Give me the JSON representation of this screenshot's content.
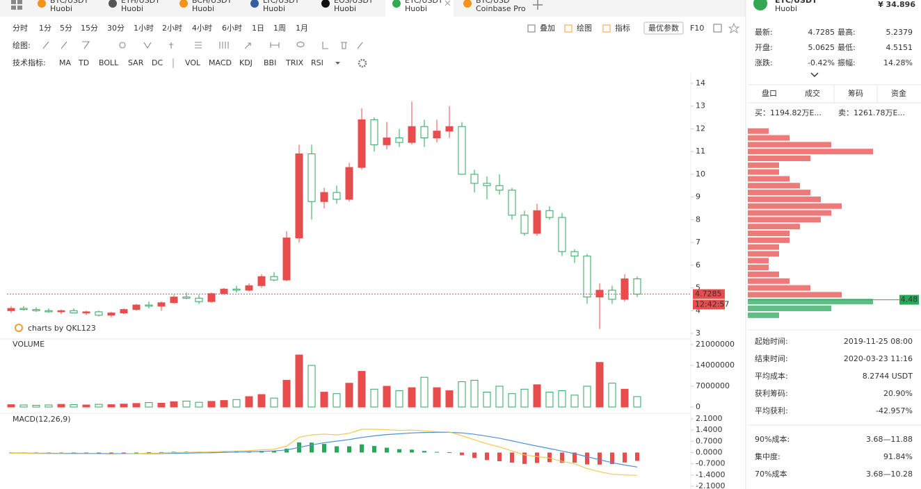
{
  "tabs": [
    {
      "pair": "BTC/USDT",
      "exchange": "Huobi",
      "icon": "#f7931a"
    },
    {
      "pair": "ETH/USDT",
      "exchange": "Huobi",
      "icon": "#555555"
    },
    {
      "pair": "BCH/USDT",
      "exchange": "Huobi",
      "icon": "#f7931a"
    },
    {
      "pair": "LTC/USDT",
      "exchange": "Huobi",
      "icon": "#345d9d"
    },
    {
      "pair": "EOS/USDT",
      "exchange": "Huobi",
      "icon": "#111111"
    },
    {
      "pair": "ETC/USDT",
      "exchange": "Huobi",
      "icon": "#33a852"
    },
    {
      "pair": "BTC/USD",
      "exchange": "Coinbase Pro",
      "icon": "#f7931a"
    }
  ],
  "tabs_active": 5,
  "periods": [
    "分时",
    "1分",
    "5分",
    "15分",
    "30分",
    "1小时",
    "2小时",
    "4小时",
    "6小时",
    "1日",
    "1周",
    "1月"
  ],
  "periods_active": 9,
  "tools": [
    "叠加",
    "绘图",
    "指标"
  ],
  "best_params": "最优参数",
  "f10": "F10",
  "draw_label": "绘图:",
  "indicator_label": "技术指标:",
  "indicators_main": [
    "MA",
    "TD",
    "BOLL",
    "SAR",
    "DC"
  ],
  "indicators_sub": [
    {
      "name": "VOL",
      "active": true
    },
    {
      "name": "MACD",
      "active": true
    },
    {
      "name": "KDJ",
      "active": false
    },
    {
      "name": "BBI",
      "active": false
    },
    {
      "name": "TRIX",
      "active": false
    },
    {
      "name": "RSI",
      "active": false
    }
  ],
  "header": {
    "pair": "ETC/USDT",
    "exchange": "Huobi",
    "price": "¥ 34.896"
  },
  "stats": [
    {
      "label": "最新:",
      "value": "4.7285",
      "color": "#333333"
    },
    {
      "label": "最高:",
      "value": "5.2379",
      "color": "#2aa85a"
    },
    {
      "label": "开盘:",
      "value": "5.0625",
      "color": "#333333"
    },
    {
      "label": "最低:",
      "value": "4.5151",
      "color": "#e84c4c"
    },
    {
      "label": "涨跌:",
      "value": "-0.42%",
      "color": "#e84c4c"
    },
    {
      "label": "振幅:",
      "value": "14.28%",
      "color": "#e84c4c"
    }
  ],
  "panel_tabs": [
    "盘口",
    "成交",
    "筹码",
    "资金"
  ],
  "panel_tabs_active": 2,
  "buy": "买：1194.82万E...",
  "sell": "卖：1261.78万E...",
  "chips": {
    "type": "bar",
    "price": 4.48,
    "prices": [
      11.9,
      11.6,
      11.3,
      11.0,
      10.7,
      10.4,
      10.1,
      9.8,
      9.5,
      9.2,
      8.9,
      8.6,
      8.3,
      8.0,
      7.7,
      7.4,
      7.1,
      6.8,
      6.5,
      6.2,
      5.9,
      5.6,
      5.3,
      5.0,
      4.7,
      4.4,
      4.1,
      3.8
    ],
    "values": [
      2,
      4,
      8,
      12,
      6,
      3,
      3,
      4,
      5,
      6,
      7,
      9,
      8,
      7,
      5,
      4,
      4,
      3,
      3,
      2,
      2,
      3,
      4,
      6,
      9,
      12,
      8,
      3
    ],
    "xlim": [
      0,
      12
    ],
    "up_color": "#e84c4c",
    "down_color": "#2aa85a"
  },
  "summary": [
    {
      "label": "起始时间:",
      "value": "2019-11-25 08:00",
      "color": "#333333"
    },
    {
      "label": "结束时间:",
      "value": "2020-03-23 11:16",
      "color": "#333333"
    },
    {
      "label": "平均成本:",
      "value": "8.2744 USDT",
      "color": "#e84c4c"
    },
    {
      "label": "获利筹码:",
      "value": "20.90%",
      "color": "#333333"
    },
    {
      "label": "平均获利:",
      "value": "-42.957%",
      "color": "#e84c4c"
    },
    {
      "label": "90%成本:",
      "value": "3.68—11.88",
      "color": "#333333"
    },
    {
      "label": "集中度:",
      "value": "91.84%",
      "color": "#333333"
    },
    {
      "label": "70%成本",
      "value": "3.68—10.28",
      "color": "#333333"
    }
  ],
  "chart_data": [
    {
      "type": "candlestick",
      "open": [
        4.0,
        4.1,
        4.05,
        4.0,
        3.95,
        4.0,
        3.9,
        3.95,
        3.8,
        3.9,
        4.05,
        4.25,
        4.2,
        4.35,
        4.6,
        4.55,
        4.4,
        4.75,
        4.95,
        4.9,
        5.1,
        5.5,
        5.35,
        7.2,
        10.9,
        8.8,
        9.2,
        8.9,
        10.3,
        12.4,
        11.3,
        11.6,
        11.4,
        12.1,
        11.6,
        11.9,
        12.1,
        10.0,
        9.6,
        9.5,
        9.3,
        8.2,
        7.4,
        8.4,
        8.1,
        6.6,
        6.4,
        4.6,
        4.9,
        4.5,
        5.4
      ],
      "high": [
        4.2,
        4.2,
        4.15,
        4.1,
        4.05,
        4.1,
        4.0,
        4.0,
        3.95,
        4.1,
        4.3,
        4.4,
        4.4,
        4.7,
        4.8,
        4.7,
        4.8,
        5.0,
        5.1,
        5.2,
        5.6,
        5.7,
        7.5,
        11.3,
        11.3,
        9.4,
        9.5,
        10.5,
        12.9,
        12.5,
        12.3,
        12.0,
        13.2,
        12.4,
        12.4,
        13.0,
        12.3,
        10.2,
        9.9,
        10.0,
        9.4,
        8.4,
        8.7,
        8.6,
        8.3,
        6.7,
        6.5,
        5.2,
        5.1,
        5.6,
        5.5
      ],
      "low": [
        3.9,
        4.0,
        3.95,
        3.9,
        3.85,
        3.9,
        3.8,
        3.75,
        3.7,
        3.85,
        4.0,
        4.1,
        4.0,
        4.3,
        4.5,
        4.3,
        4.35,
        4.7,
        4.8,
        4.85,
        5.0,
        5.3,
        5.3,
        7.0,
        8.0,
        8.5,
        8.7,
        8.8,
        10.2,
        11.0,
        11.1,
        11.2,
        11.3,
        11.2,
        11.4,
        11.6,
        10.0,
        9.2,
        8.9,
        9.1,
        8.0,
        7.3,
        7.3,
        8.0,
        6.4,
        6.1,
        4.3,
        3.2,
        4.3,
        4.4,
        4.6
      ],
      "close": [
        4.1,
        4.05,
        4.0,
        3.95,
        4.0,
        3.9,
        3.95,
        3.8,
        3.9,
        4.05,
        4.25,
        4.2,
        4.35,
        4.6,
        4.55,
        4.4,
        4.75,
        4.95,
        4.9,
        5.1,
        5.5,
        5.35,
        7.2,
        10.9,
        8.8,
        9.2,
        8.9,
        10.3,
        12.4,
        11.3,
        11.6,
        11.4,
        12.1,
        11.6,
        11.9,
        12.1,
        10.0,
        9.6,
        9.5,
        9.3,
        8.2,
        7.4,
        8.4,
        8.1,
        6.6,
        6.4,
        4.6,
        4.9,
        4.5,
        5.4,
        4.73
      ],
      "ylim": [
        3,
        14
      ],
      "yticks": [
        3,
        4,
        5,
        6,
        7,
        8,
        9,
        10,
        11,
        12,
        13,
        14
      ],
      "last_price": 4.7285,
      "countdown": "12:42:57",
      "watermark": "charts by QKL123",
      "up_color": "#e84c4c",
      "down_color": "#2aa85a"
    },
    {
      "type": "bar",
      "title": "VOLUME",
      "values": [
        800000,
        700000,
        600000,
        700000,
        900000,
        800000,
        700000,
        900000,
        800000,
        1000000,
        1200000,
        1500000,
        1300000,
        1800000,
        2000000,
        1600000,
        1900000,
        2200000,
        2500000,
        3500000,
        4200000,
        3000000,
        9000000,
        17500000,
        14000000,
        5000000,
        4500000,
        8000000,
        12000000,
        6000000,
        7000000,
        5500000,
        6500000,
        10000000,
        6500000,
        5500000,
        8500000,
        9000000,
        5000000,
        7000000,
        4500000,
        6000000,
        7500000,
        5000000,
        5500000,
        4000000,
        7000000,
        15000000,
        8000000,
        6000000,
        3500000
      ],
      "ylim": [
        0,
        21000000
      ],
      "yticks": [
        0,
        7000000,
        14000000,
        21000000
      ]
    },
    {
      "type": "macd",
      "title": "MACD(12,26,9)",
      "dif": [
        -0.05,
        -0.05,
        -0.06,
        -0.07,
        -0.07,
        -0.08,
        -0.08,
        -0.09,
        -0.1,
        -0.09,
        -0.07,
        -0.05,
        -0.03,
        0.0,
        0.02,
        0.03,
        0.04,
        0.07,
        0.1,
        0.12,
        0.17,
        0.2,
        0.4,
        0.95,
        1.1,
        1.15,
        1.1,
        1.2,
        1.45,
        1.45,
        1.42,
        1.38,
        1.4,
        1.35,
        1.3,
        1.28,
        1.05,
        0.8,
        0.55,
        0.35,
        0.1,
        -0.15,
        -0.25,
        -0.35,
        -0.55,
        -0.7,
        -1.0,
        -1.2,
        -1.35,
        -1.4,
        -1.42
      ],
      "dea": [
        -0.03,
        -0.03,
        -0.04,
        -0.04,
        -0.05,
        -0.05,
        -0.06,
        -0.06,
        -0.07,
        -0.07,
        -0.07,
        -0.07,
        -0.06,
        -0.05,
        -0.04,
        -0.02,
        -0.01,
        0.01,
        0.03,
        0.05,
        0.07,
        0.1,
        0.16,
        0.32,
        0.48,
        0.61,
        0.71,
        0.81,
        0.94,
        1.04,
        1.12,
        1.17,
        1.22,
        1.25,
        1.26,
        1.26,
        1.22,
        1.14,
        1.02,
        0.89,
        0.73,
        0.56,
        0.4,
        0.25,
        0.09,
        -0.07,
        -0.26,
        -0.45,
        -0.63,
        -0.78,
        -0.9
      ],
      "hist": [
        -0.02,
        -0.02,
        -0.02,
        -0.03,
        -0.02,
        -0.03,
        -0.02,
        -0.03,
        -0.03,
        -0.02,
        0,
        0.02,
        0.03,
        0.05,
        0.06,
        0.05,
        0.05,
        0.06,
        0.07,
        0.07,
        0.1,
        0.1,
        0.24,
        0.63,
        0.62,
        0.54,
        0.39,
        0.39,
        0.51,
        0.41,
        0.3,
        0.21,
        0.18,
        0.1,
        0.04,
        0.02,
        -0.17,
        -0.34,
        -0.47,
        -0.54,
        -0.63,
        -0.71,
        -0.65,
        -0.6,
        -0.64,
        -0.63,
        -0.74,
        -0.75,
        -0.72,
        -0.62,
        -0.52
      ],
      "dif_color": "#f2c94c",
      "dea_color": "#4a90d9",
      "hist_up_color": "#2aa85a",
      "hist_down_color": "#e84c4c",
      "ylim": [
        -2.1,
        2.1
      ],
      "yticks": [
        {
          "value": 2.1,
          "label": "2.1000"
        },
        {
          "value": 1.4,
          "label": "1.4000"
        },
        {
          "value": 0.7,
          "label": "0.7000"
        },
        {
          "value": 0,
          "label": "0.0000"
        },
        {
          "value": -0.7,
          "label": "-0.7000"
        },
        {
          "value": -1.4,
          "label": "-1.4000"
        },
        {
          "value": -2.1,
          "label": "-2.1000"
        }
      ]
    }
  ]
}
